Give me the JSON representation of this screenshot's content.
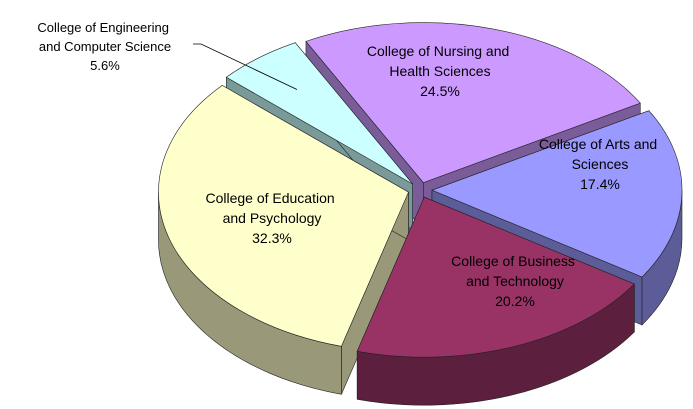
{
  "chart_data": {
    "type": "pie3d",
    "categories": [
      "College of Nursing and Health Sciences",
      "College of Arts and Sciences",
      "College of Business and Technology",
      "College of Education and Psychology",
      "College of Engineering and Computer Science"
    ],
    "values": [
      24.5,
      17.4,
      20.2,
      32.3,
      5.6
    ],
    "value_labels": [
      "24.5%",
      "17.4%",
      "20.2%",
      "32.3%",
      "5.6%"
    ],
    "colors": [
      "#cc99ff",
      "#9999ff",
      "#993366",
      "#ffffcc",
      "#ccffff"
    ],
    "side_colors": [
      "#7a5c99",
      "#5c5c99",
      "#5c1f3d",
      "#99997a",
      "#7a9999"
    ]
  }
}
